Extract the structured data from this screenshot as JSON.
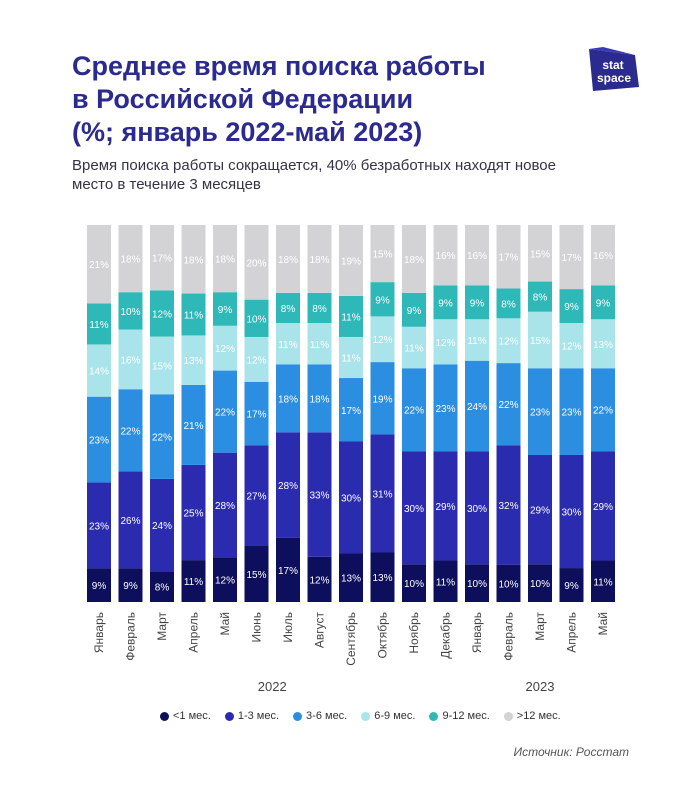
{
  "header": {
    "title_line1": "Среднее время поиска работы",
    "title_line2": "в Российской Федерации",
    "title_line3": "(%; январь 2022-май 2023)",
    "subtitle_line1": "Время поиска работы сокращается, 40% безработных находят новое",
    "subtitle_line2": "место в течение 3 месяцев"
  },
  "logo": {
    "line1": "stat",
    "line2": "space"
  },
  "source": "Источник: Росстат",
  "chart_data": {
    "type": "bar",
    "stacked": true,
    "title": "Среднее время поиска работы в Российской Федерации (%; январь 2022-май 2023)",
    "categories": [
      "Январь",
      "Февраль",
      "Март",
      "Апрель",
      "Май",
      "Июнь",
      "Июль",
      "Август",
      "Сентябрь",
      "Октябрь",
      "Ноябрь",
      "Декабрь",
      "Январь",
      "Февраль",
      "Март",
      "Апрель",
      "Май"
    ],
    "year_groups": [
      {
        "label": "2022",
        "from": 0,
        "to": 11
      },
      {
        "label": "2023",
        "from": 12,
        "to": 16
      }
    ],
    "ylim": [
      0,
      100
    ],
    "series": [
      {
        "name": "<1 мес.",
        "color": "#0d0f5c",
        "values": [
          9,
          9,
          8,
          11,
          12,
          15,
          17,
          12,
          13,
          13,
          10,
          11,
          10,
          10,
          10,
          9,
          11
        ]
      },
      {
        "name": "1-3 мес.",
        "color": "#2b2bb0",
        "values": [
          23,
          26,
          24,
          25,
          28,
          27,
          28,
          33,
          30,
          31,
          30,
          29,
          30,
          32,
          29,
          30,
          29
        ]
      },
      {
        "name": "3-6 мес.",
        "color": "#2b8ee0",
        "values": [
          23,
          22,
          22,
          21,
          22,
          17,
          18,
          18,
          17,
          19,
          22,
          23,
          24,
          22,
          23,
          23,
          22
        ]
      },
      {
        "name": "6-9 мес.",
        "color": "#a9e4ea",
        "values": [
          14,
          16,
          15,
          13,
          12,
          12,
          11,
          11,
          11,
          12,
          11,
          12,
          11,
          12,
          15,
          12,
          13
        ]
      },
      {
        "name": "9-12 мес.",
        "color": "#2fb8b8",
        "values": [
          11,
          10,
          12,
          11,
          9,
          10,
          8,
          8,
          11,
          9,
          9,
          9,
          9,
          8,
          8,
          9,
          9
        ]
      },
      {
        "name": ">12 мес.",
        "color": "#d3d3d6",
        "values": [
          21,
          18,
          17,
          18,
          18,
          20,
          18,
          18,
          19,
          15,
          18,
          16,
          16,
          17,
          15,
          17,
          16
        ]
      }
    ]
  }
}
